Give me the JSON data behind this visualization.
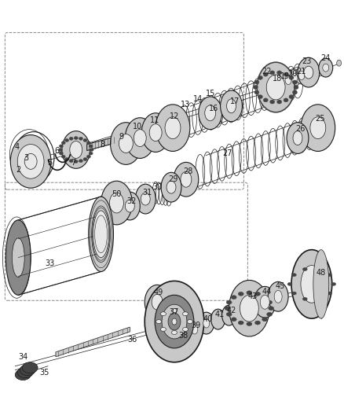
{
  "bg_color": "#ffffff",
  "line_color": "#1a1a1a",
  "gray_dark": "#444444",
  "gray_mid": "#888888",
  "gray_light": "#c8c8c8",
  "gray_vlight": "#e8e8e8",
  "fig_width": 4.39,
  "fig_height": 5.33,
  "dpi": 100,
  "label_fontsize": 7.0
}
